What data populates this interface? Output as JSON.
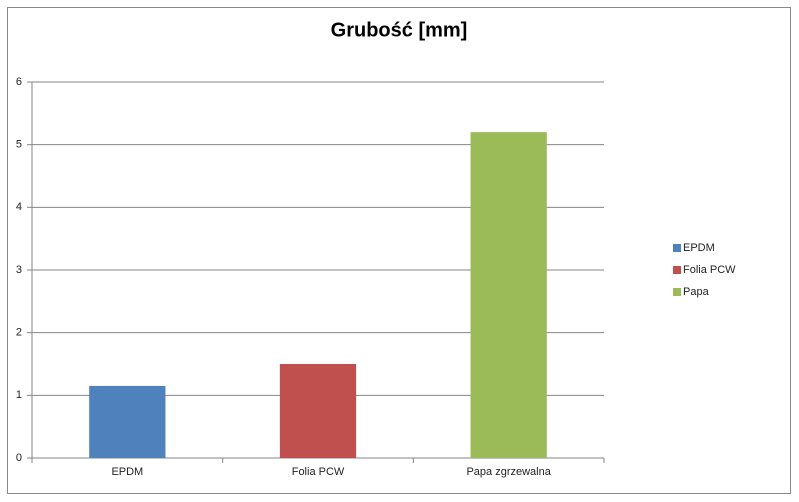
{
  "chart_data": {
    "type": "bar",
    "title": "Grubość [mm]",
    "categories": [
      "EPDM",
      "Folia PCW",
      "Papa zgrzewalna"
    ],
    "series": [
      {
        "name": "EPDM",
        "color": "#4f81bd",
        "values": [
          1.15,
          null,
          null
        ]
      },
      {
        "name": "Folia PCW",
        "color": "#c0504d",
        "values": [
          null,
          1.5,
          null
        ]
      },
      {
        "name": "Papa",
        "color": "#9bbb59",
        "values": [
          null,
          null,
          5.2
        ]
      }
    ],
    "ylim": [
      0,
      6
    ],
    "yticks": [
      0,
      1,
      2,
      3,
      4,
      5,
      6
    ],
    "grid": true,
    "legend": "right"
  }
}
